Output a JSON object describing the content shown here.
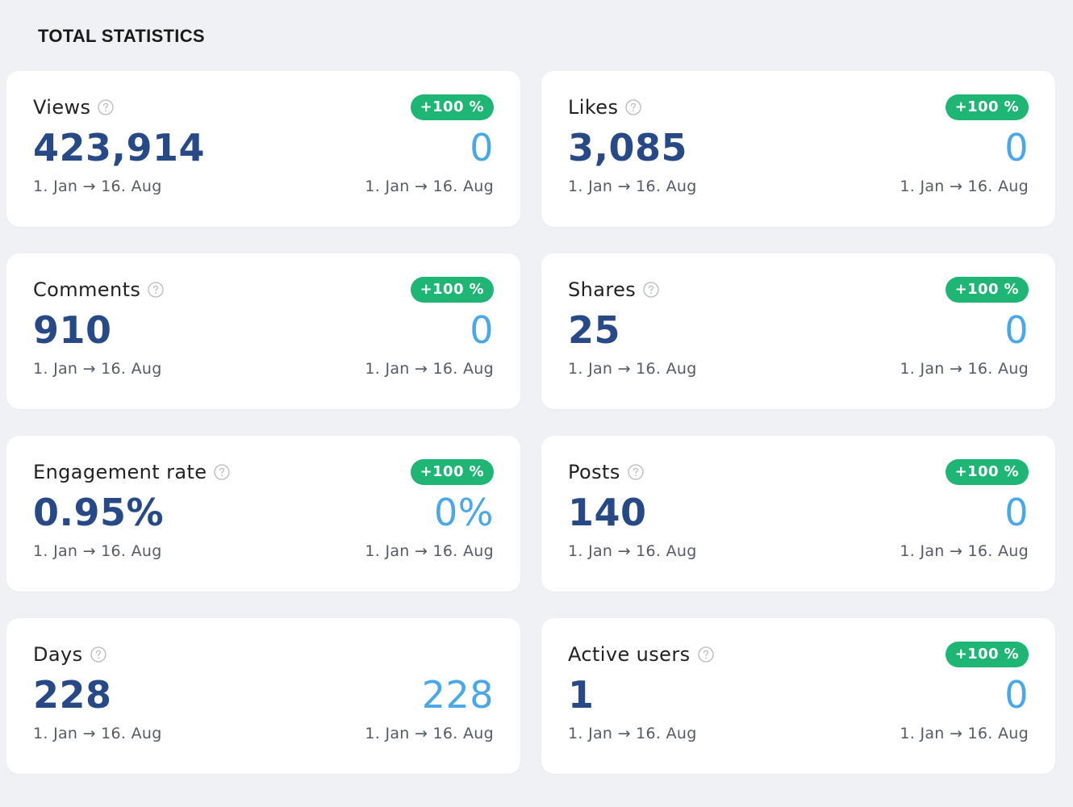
{
  "page": {
    "title": "TOTAL STATISTICS"
  },
  "icons": {
    "help": "help-circle-icon"
  },
  "colors": {
    "background": "#f0f1f5",
    "card": "#ffffff",
    "primary_value": "#274a87",
    "compare_value": "#4aa8e6",
    "badge": "#1fb574"
  },
  "cards": [
    {
      "title": "Views",
      "badge": "+100 %",
      "value": "423,914",
      "compare_value": "0",
      "period": "1. Jan → 16. Aug",
      "compare_period": "1. Jan → 16. Aug"
    },
    {
      "title": "Likes",
      "badge": "+100 %",
      "value": "3,085",
      "compare_value": "0",
      "period": "1. Jan → 16. Aug",
      "compare_period": "1. Jan → 16. Aug"
    },
    {
      "title": "Comments",
      "badge": "+100 %",
      "value": "910",
      "compare_value": "0",
      "period": "1. Jan → 16. Aug",
      "compare_period": "1. Jan → 16. Aug"
    },
    {
      "title": "Shares",
      "badge": "+100 %",
      "value": "25",
      "compare_value": "0",
      "period": "1. Jan → 16. Aug",
      "compare_period": "1. Jan → 16. Aug"
    },
    {
      "title": "Engagement rate",
      "badge": "+100 %",
      "value": "0.95%",
      "compare_value": "0%",
      "period": "1. Jan → 16. Aug",
      "compare_period": "1. Jan → 16. Aug"
    },
    {
      "title": "Posts",
      "badge": "+100 %",
      "value": "140",
      "compare_value": "0",
      "period": "1. Jan → 16. Aug",
      "compare_period": "1. Jan → 16. Aug"
    },
    {
      "title": "Days",
      "badge": null,
      "value": "228",
      "compare_value": "228",
      "period": "1. Jan → 16. Aug",
      "compare_period": "1. Jan → 16. Aug"
    },
    {
      "title": "Active users",
      "badge": "+100 %",
      "value": "1",
      "compare_value": "0",
      "period": "1. Jan → 16. Aug",
      "compare_period": "1. Jan → 16. Aug"
    }
  ]
}
